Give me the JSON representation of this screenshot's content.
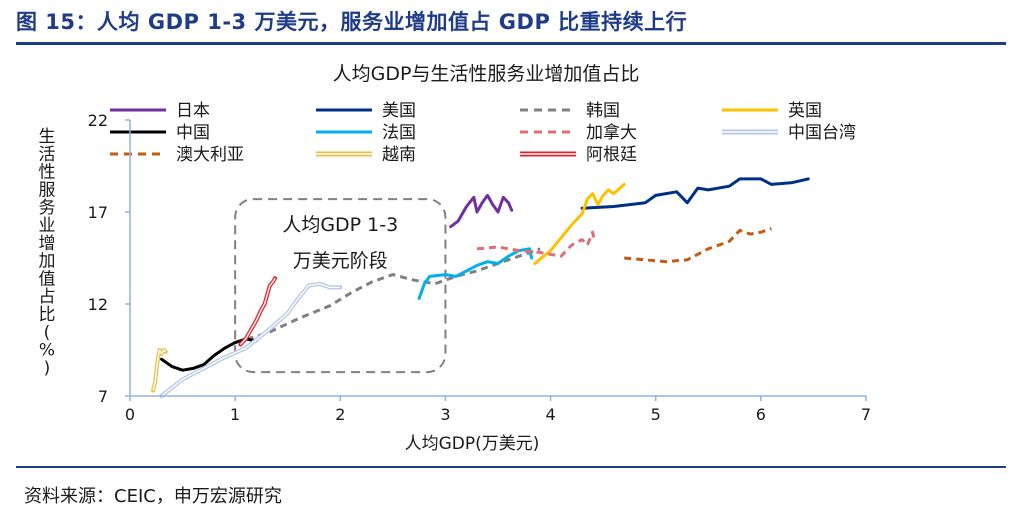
{
  "figure_title": "图 15：人均 GDP 1-3 万美元，服务业增加值占 GDP 比重持续上行",
  "source": "资料来源：CEIC，申万宏源研究",
  "colors": {
    "heading": "#1f3c88",
    "axis": "#8db4e2",
    "japan": "#7030a0",
    "usa": "#002f87",
    "korea": "#808080",
    "uk": "#ffc000",
    "china": "#000000",
    "france": "#00b0f0",
    "canada": "#e06c75",
    "taiwan": "#b4c6e7",
    "australia": "#c55a11",
    "vietnam": "#e6c24a",
    "argentina": "#e8232a"
  },
  "chart_data": {
    "type": "line",
    "title": "人均GDP与生活性服务业增加值占比",
    "xlabel": "人均GDP(万美元)",
    "ylabel": "生活性服务业增加值占比(%)",
    "xlim": [
      0,
      7
    ],
    "ylim": [
      7,
      22
    ],
    "xticks": [
      0,
      1,
      2,
      3,
      4,
      5,
      6,
      7
    ],
    "yticks": [
      7,
      12,
      17,
      22
    ],
    "legend_position": "top",
    "annotation": {
      "line1": "人均GDP 1-3",
      "line2": "万美元阶段",
      "box_x": [
        1.0,
        3.0
      ],
      "box_y": [
        8.3,
        17.7
      ]
    },
    "series": [
      {
        "name": "日本",
        "style": "solid",
        "color": "#7030a0",
        "x": [
          3.05,
          3.12,
          3.2,
          3.27,
          3.3,
          3.35,
          3.4,
          3.45,
          3.5,
          3.55,
          3.6,
          3.63
        ],
        "y": [
          16.2,
          16.5,
          17.3,
          17.8,
          17.0,
          17.5,
          17.9,
          17.4,
          17.0,
          17.8,
          17.5,
          17.1
        ]
      },
      {
        "name": "美国",
        "style": "solid",
        "color": "#002f87",
        "x": [
          4.3,
          4.6,
          4.9,
          5.0,
          5.2,
          5.3,
          5.4,
          5.5,
          5.7,
          5.8,
          6.0,
          6.1,
          6.3,
          6.45
        ],
        "y": [
          17.2,
          17.3,
          17.5,
          17.9,
          18.1,
          17.5,
          18.3,
          18.2,
          18.4,
          18.8,
          18.8,
          18.5,
          18.6,
          18.8
        ]
      },
      {
        "name": "韩国",
        "style": "dashed",
        "color": "#808080",
        "x": [
          1.0,
          1.3,
          1.6,
          1.9,
          2.1,
          2.3,
          2.5,
          2.7,
          2.9,
          3.1,
          3.3,
          3.5,
          3.7,
          3.9
        ],
        "y": [
          9.9,
          10.4,
          11.2,
          11.9,
          12.6,
          13.2,
          13.6,
          13.3,
          13.1,
          13.5,
          13.8,
          14.2,
          14.6,
          15.0
        ]
      },
      {
        "name": "英国",
        "style": "solid",
        "color": "#ffc000",
        "x": [
          3.85,
          4.0,
          4.1,
          4.2,
          4.3,
          4.35,
          4.4,
          4.45,
          4.5,
          4.55,
          4.6,
          4.7
        ],
        "y": [
          14.2,
          14.9,
          15.6,
          16.3,
          16.9,
          17.7,
          18.0,
          17.4,
          17.9,
          18.2,
          18.0,
          18.5
        ]
      },
      {
        "name": "中国",
        "style": "solid",
        "color": "#000000",
        "x": [
          0.3,
          0.4,
          0.5,
          0.6,
          0.7,
          0.8,
          0.9,
          1.0,
          1.1,
          1.2
        ],
        "y": [
          9.0,
          8.6,
          8.4,
          8.5,
          8.7,
          9.2,
          9.6,
          9.9,
          10.1,
          10.0
        ]
      },
      {
        "name": "法国",
        "style": "solid",
        "color": "#00b0f0",
        "x": [
          2.75,
          2.8,
          2.85,
          3.0,
          3.1,
          3.2,
          3.3,
          3.4,
          3.5,
          3.6,
          3.7,
          3.8,
          3.82
        ],
        "y": [
          12.3,
          13.1,
          13.5,
          13.6,
          13.5,
          13.8,
          14.1,
          14.3,
          14.2,
          14.6,
          14.9,
          15.0,
          14.5
        ]
      },
      {
        "name": "加拿大",
        "style": "dashed",
        "color": "#e06c75",
        "x": [
          3.3,
          3.5,
          3.7,
          3.9,
          4.1,
          4.2,
          4.3,
          4.35,
          4.4,
          4.42
        ],
        "y": [
          15.0,
          15.1,
          14.9,
          14.8,
          14.6,
          15.2,
          15.5,
          15.2,
          15.9,
          15.4
        ]
      },
      {
        "name": "中国台湾",
        "style": "double",
        "color": "#b4c6e7",
        "x": [
          0.3,
          0.5,
          0.7,
          0.9,
          1.1,
          1.3,
          1.5,
          1.6,
          1.7,
          1.8,
          1.9,
          2.0
        ],
        "y": [
          7.0,
          7.9,
          8.5,
          9.1,
          9.6,
          10.5,
          11.5,
          12.3,
          13.0,
          13.1,
          12.9,
          12.9
        ]
      },
      {
        "name": "澳大利亚",
        "style": "dashed",
        "color": "#c55a11",
        "x": [
          4.7,
          4.9,
          5.1,
          5.3,
          5.5,
          5.7,
          5.8,
          5.9,
          6.0,
          6.1
        ],
        "y": [
          14.5,
          14.4,
          14.3,
          14.4,
          15.0,
          15.4,
          16.0,
          15.8,
          15.9,
          16.1
        ]
      },
      {
        "name": "越南",
        "style": "double",
        "color": "#e6c24a",
        "x": [
          0.22,
          0.24,
          0.26,
          0.28,
          0.3,
          0.32,
          0.34
        ],
        "y": [
          7.3,
          7.8,
          8.8,
          9.5,
          9.3,
          9.5,
          9.4
        ]
      },
      {
        "name": "阿根廷",
        "style": "double",
        "color": "#e8232a",
        "x": [
          1.05,
          1.1,
          1.15,
          1.2,
          1.25,
          1.28,
          1.3,
          1.33,
          1.36,
          1.38
        ],
        "y": [
          9.8,
          10.1,
          10.6,
          11.1,
          11.7,
          12.0,
          12.4,
          13.0,
          13.2,
          13.4
        ]
      }
    ]
  }
}
